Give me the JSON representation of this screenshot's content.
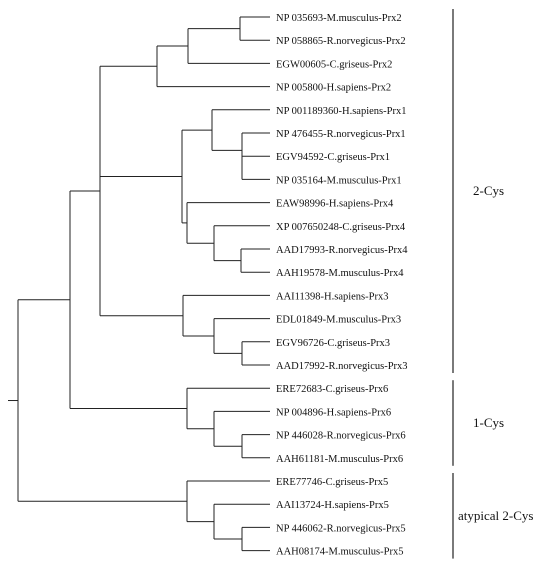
{
  "tree": {
    "leaves": [
      "NP 035693-M.musculus-Prx2",
      "NP 058865-R.norvegicus-Prx2",
      "EGW00605-C.griseus-Prx2",
      "NP 005800-H.sapiens-Prx2",
      "NP 001189360-H.sapiens-Prx1",
      "NP 476455-R.norvegicus-Prx1",
      "EGV94592-C.griseus-Prx1",
      "NP 035164-M.musculus-Prx1",
      "EAW98996-H.sapiens-Prx4",
      "XP 007650248-C.griseus-Prx4",
      "AAD17993-R.norvegicus-Prx4",
      "AAH19578-M.musculus-Prx4",
      "AAI11398-H.sapiens-Prx3",
      "EDL01849-M.musculus-Prx3",
      "EGV96726-C.griseus-Prx3",
      "AAD17992-R.norvegicus-Prx3",
      "ERE72683-C.griseus-Prx6",
      "NP 004896-H.sapiens-Prx6",
      "NP 446028-R.norvegicus-Prx6",
      "AAH61181-M.musculus-Prx6",
      "ERE77746-C.griseus-Prx5",
      "AAI13724-H.sapiens-Prx5",
      "NP 446062-R.norvegicus-Prx5",
      "AAH08174-M.musculus-Prx5"
    ],
    "groups": [
      {
        "label": "2-Cys",
        "first_leaf": 0,
        "last_leaf": 15
      },
      {
        "label": "1-Cys",
        "first_leaf": 16,
        "last_leaf": 19
      },
      {
        "label": "atypical 2-Cys",
        "first_leaf": 20,
        "last_leaf": 23
      }
    ]
  }
}
